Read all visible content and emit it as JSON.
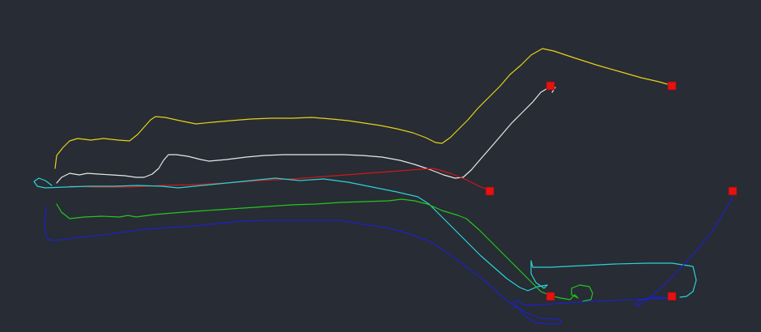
{
  "canvas": {
    "background": "#282c34"
  },
  "tracks": [
    {
      "id": "yellow",
      "color": "#e6d21a"
    },
    {
      "id": "white",
      "color": "#e8e8e8"
    },
    {
      "id": "red",
      "color": "#d01818"
    },
    {
      "id": "cyan",
      "color": "#2ad4d8"
    },
    {
      "id": "green",
      "color": "#22c81e"
    },
    {
      "id": "blue",
      "color": "#1c22c4"
    }
  ],
  "markers": {
    "color": "#e81010",
    "count": 6,
    "icon": "red-square-marker"
  }
}
